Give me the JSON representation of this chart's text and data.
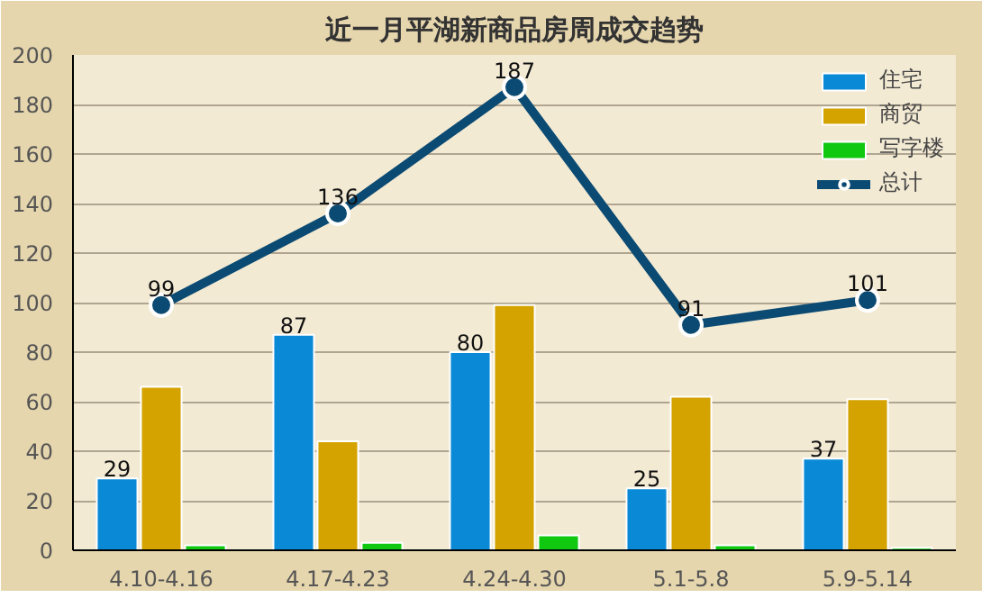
{
  "chart_data": {
    "type": "bar",
    "title": "近一月平湖新商品房周成交趋势",
    "categories": [
      "4.10-4.16",
      "4.17-4.23",
      "4.24-4.30",
      "5.1-5.8",
      "5.9-5.14"
    ],
    "series": [
      {
        "name": "住宅",
        "color": "#0a8ad6",
        "values": [
          29,
          87,
          80,
          25,
          37
        ],
        "value_labels": [
          "29",
          "87",
          "80",
          "25",
          "37"
        ]
      },
      {
        "name": "商贸",
        "color": "#d4a300",
        "values": [
          66,
          44,
          99,
          62,
          61
        ]
      },
      {
        "name": "写字楼",
        "color": "#10c810",
        "values": [
          2,
          3,
          6,
          2,
          1
        ]
      },
      {
        "name": "总计",
        "type": "line",
        "color": "#0b4a72",
        "values": [
          99,
          136,
          187,
          91,
          101
        ],
        "data_labels": true,
        "marker": "circle"
      }
    ],
    "ylim": [
      0,
      200
    ],
    "yticks": [
      0,
      20,
      40,
      60,
      80,
      100,
      120,
      140,
      160,
      180,
      200
    ],
    "grid": "y",
    "legend": "top right"
  }
}
